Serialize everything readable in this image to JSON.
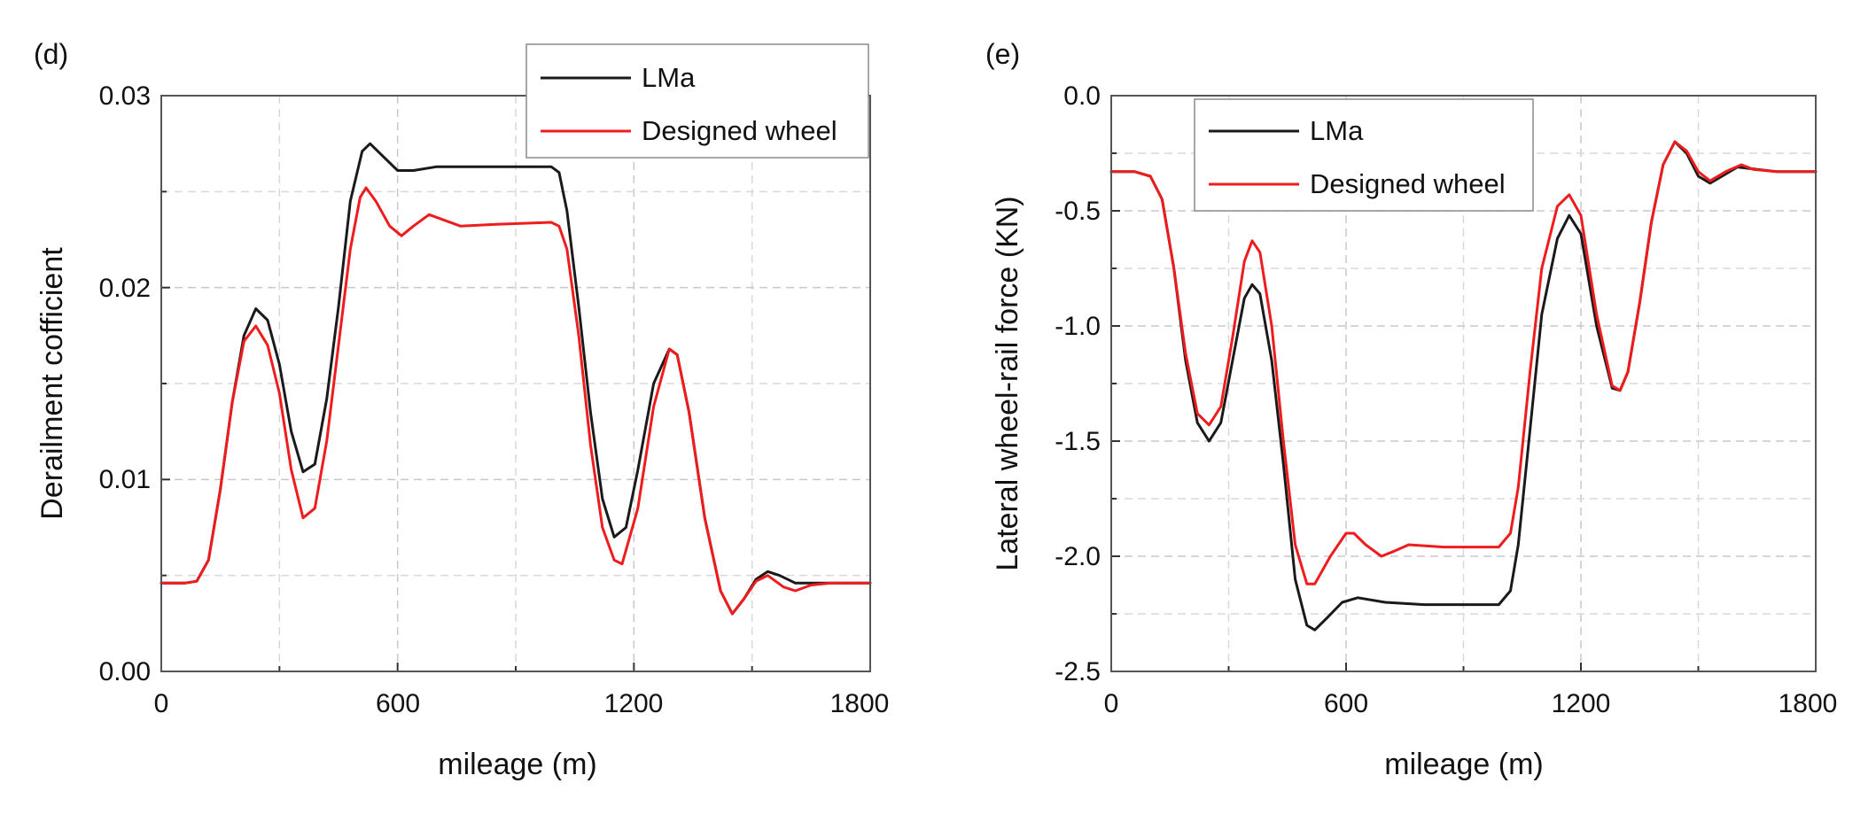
{
  "chart_data": [
    {
      "type": "line",
      "panel_label": "(d)",
      "title": "",
      "xlabel": "mileage (m)",
      "ylabel": "Derailment cofficient",
      "xlim": [
        0,
        1800
      ],
      "ylim": [
        0,
        0.03
      ],
      "x_ticks": [
        0,
        600,
        1200,
        1800
      ],
      "x_tick_labels": [
        "0",
        "600",
        "1200",
        "1800"
      ],
      "y_ticks": [
        0,
        0.01,
        0.02,
        0.03
      ],
      "y_tick_labels": [
        "0.00",
        "0.01",
        "0.02",
        "0.03"
      ],
      "grid": true,
      "legend_position": "top-right",
      "series": [
        {
          "name": "LMa",
          "color": "#1a1a1a",
          "points": [
            [
              0,
              0.0046
            ],
            [
              60,
              0.0046
            ],
            [
              90,
              0.0047
            ],
            [
              120,
              0.0058
            ],
            [
              150,
              0.0095
            ],
            [
              180,
              0.014
            ],
            [
              210,
              0.0175
            ],
            [
              240,
              0.0189
            ],
            [
              270,
              0.0183
            ],
            [
              300,
              0.016
            ],
            [
              330,
              0.0125
            ],
            [
              360,
              0.0104
            ],
            [
              390,
              0.0108
            ],
            [
              420,
              0.0142
            ],
            [
              450,
              0.019
            ],
            [
              480,
              0.0245
            ],
            [
              510,
              0.0271
            ],
            [
              530,
              0.0275
            ],
            [
              560,
              0.0269
            ],
            [
              600,
              0.0261
            ],
            [
              640,
              0.0261
            ],
            [
              700,
              0.0263
            ],
            [
              800,
              0.0263
            ],
            [
              900,
              0.0263
            ],
            [
              990,
              0.0263
            ],
            [
              1010,
              0.026
            ],
            [
              1030,
              0.024
            ],
            [
              1060,
              0.019
            ],
            [
              1090,
              0.0135
            ],
            [
              1120,
              0.009
            ],
            [
              1150,
              0.007
            ],
            [
              1180,
              0.0075
            ],
            [
              1210,
              0.0105
            ],
            [
              1250,
              0.015
            ],
            [
              1290,
              0.0168
            ],
            [
              1310,
              0.0165
            ],
            [
              1340,
              0.0135
            ],
            [
              1380,
              0.008
            ],
            [
              1420,
              0.0042
            ],
            [
              1450,
              0.003
            ],
            [
              1480,
              0.0038
            ],
            [
              1510,
              0.0048
            ],
            [
              1540,
              0.0052
            ],
            [
              1570,
              0.005
            ],
            [
              1610,
              0.0046
            ],
            [
              1700,
              0.0046
            ],
            [
              1800,
              0.0046
            ]
          ]
        },
        {
          "name": "Designed wheel",
          "color": "#ee1c1c",
          "points": [
            [
              0,
              0.0046
            ],
            [
              60,
              0.0046
            ],
            [
              90,
              0.0047
            ],
            [
              120,
              0.0058
            ],
            [
              150,
              0.0095
            ],
            [
              180,
              0.014
            ],
            [
              210,
              0.0172
            ],
            [
              240,
              0.018
            ],
            [
              270,
              0.017
            ],
            [
              300,
              0.0145
            ],
            [
              330,
              0.0105
            ],
            [
              360,
              0.008
            ],
            [
              390,
              0.0085
            ],
            [
              420,
              0.012
            ],
            [
              450,
              0.017
            ],
            [
              480,
              0.022
            ],
            [
              505,
              0.0247
            ],
            [
              520,
              0.0252
            ],
            [
              545,
              0.0245
            ],
            [
              580,
              0.0232
            ],
            [
              610,
              0.0227
            ],
            [
              640,
              0.0232
            ],
            [
              680,
              0.0238
            ],
            [
              720,
              0.0235
            ],
            [
              760,
              0.0232
            ],
            [
              850,
              0.0233
            ],
            [
              990,
              0.0234
            ],
            [
              1010,
              0.0232
            ],
            [
              1030,
              0.022
            ],
            [
              1060,
              0.0175
            ],
            [
              1090,
              0.0118
            ],
            [
              1120,
              0.0075
            ],
            [
              1150,
              0.0058
            ],
            [
              1170,
              0.0056
            ],
            [
              1210,
              0.0085
            ],
            [
              1250,
              0.0138
            ],
            [
              1290,
              0.0168
            ],
            [
              1310,
              0.0165
            ],
            [
              1340,
              0.0135
            ],
            [
              1380,
              0.008
            ],
            [
              1420,
              0.0042
            ],
            [
              1450,
              0.003
            ],
            [
              1480,
              0.0038
            ],
            [
              1510,
              0.0047
            ],
            [
              1540,
              0.005
            ],
            [
              1580,
              0.0044
            ],
            [
              1610,
              0.0042
            ],
            [
              1650,
              0.0045
            ],
            [
              1700,
              0.0046
            ],
            [
              1800,
              0.0046
            ]
          ]
        }
      ]
    },
    {
      "type": "line",
      "panel_label": "(e)",
      "title": "",
      "xlabel": "mileage (m)",
      "ylabel": "Lateral wheel-rail force (KN)",
      "xlim": [
        0,
        1800
      ],
      "ylim": [
        -2.5,
        0
      ],
      "x_ticks": [
        0,
        600,
        1200,
        1800
      ],
      "x_tick_labels": [
        "0",
        "600",
        "1200",
        "1800"
      ],
      "y_ticks": [
        -2.5,
        -2.0,
        -1.5,
        -1.0,
        -0.5,
        0.0
      ],
      "y_tick_labels": [
        "-2.5",
        "-2.0",
        "-1.5",
        "-1.0",
        "-0.5",
        "0.0"
      ],
      "grid": true,
      "legend_position": "top-left",
      "series": [
        {
          "name": "LMa",
          "color": "#1a1a1a",
          "points": [
            [
              0,
              -0.33
            ],
            [
              60,
              -0.33
            ],
            [
              100,
              -0.35
            ],
            [
              130,
              -0.45
            ],
            [
              160,
              -0.75
            ],
            [
              190,
              -1.15
            ],
            [
              220,
              -1.42
            ],
            [
              250,
              -1.5
            ],
            [
              280,
              -1.42
            ],
            [
              310,
              -1.15
            ],
            [
              340,
              -0.88
            ],
            [
              360,
              -0.82
            ],
            [
              380,
              -0.86
            ],
            [
              410,
              -1.15
            ],
            [
              440,
              -1.6
            ],
            [
              470,
              -2.1
            ],
            [
              500,
              -2.3
            ],
            [
              520,
              -2.32
            ],
            [
              550,
              -2.27
            ],
            [
              590,
              -2.2
            ],
            [
              630,
              -2.18
            ],
            [
              700,
              -2.2
            ],
            [
              800,
              -2.21
            ],
            [
              900,
              -2.21
            ],
            [
              990,
              -2.21
            ],
            [
              1020,
              -2.15
            ],
            [
              1040,
              -1.95
            ],
            [
              1070,
              -1.45
            ],
            [
              1100,
              -0.95
            ],
            [
              1140,
              -0.62
            ],
            [
              1170,
              -0.52
            ],
            [
              1200,
              -0.6
            ],
            [
              1240,
              -1.0
            ],
            [
              1280,
              -1.27
            ],
            [
              1300,
              -1.28
            ],
            [
              1320,
              -1.2
            ],
            [
              1350,
              -0.9
            ],
            [
              1380,
              -0.55
            ],
            [
              1410,
              -0.3
            ],
            [
              1440,
              -0.2
            ],
            [
              1470,
              -0.25
            ],
            [
              1500,
              -0.35
            ],
            [
              1530,
              -0.38
            ],
            [
              1570,
              -0.34
            ],
            [
              1600,
              -0.31
            ],
            [
              1650,
              -0.32
            ],
            [
              1700,
              -0.33
            ],
            [
              1800,
              -0.33
            ]
          ]
        },
        {
          "name": "Designed wheel",
          "color": "#ee1c1c",
          "points": [
            [
              0,
              -0.33
            ],
            [
              60,
              -0.33
            ],
            [
              100,
              -0.35
            ],
            [
              130,
              -0.45
            ],
            [
              160,
              -0.75
            ],
            [
              190,
              -1.12
            ],
            [
              220,
              -1.38
            ],
            [
              250,
              -1.43
            ],
            [
              280,
              -1.35
            ],
            [
              310,
              -1.05
            ],
            [
              340,
              -0.72
            ],
            [
              360,
              -0.63
            ],
            [
              380,
              -0.68
            ],
            [
              410,
              -1.0
            ],
            [
              440,
              -1.5
            ],
            [
              470,
              -1.95
            ],
            [
              500,
              -2.12
            ],
            [
              520,
              -2.12
            ],
            [
              560,
              -2.0
            ],
            [
              600,
              -1.9
            ],
            [
              620,
              -1.9
            ],
            [
              650,
              -1.95
            ],
            [
              690,
              -2.0
            ],
            [
              720,
              -1.98
            ],
            [
              760,
              -1.95
            ],
            [
              850,
              -1.96
            ],
            [
              990,
              -1.96
            ],
            [
              1020,
              -1.9
            ],
            [
              1040,
              -1.7
            ],
            [
              1070,
              -1.2
            ],
            [
              1100,
              -0.75
            ],
            [
              1140,
              -0.48
            ],
            [
              1170,
              -0.43
            ],
            [
              1200,
              -0.52
            ],
            [
              1240,
              -0.95
            ],
            [
              1280,
              -1.26
            ],
            [
              1300,
              -1.28
            ],
            [
              1320,
              -1.2
            ],
            [
              1350,
              -0.9
            ],
            [
              1380,
              -0.55
            ],
            [
              1410,
              -0.3
            ],
            [
              1440,
              -0.2
            ],
            [
              1470,
              -0.24
            ],
            [
              1500,
              -0.33
            ],
            [
              1530,
              -0.37
            ],
            [
              1570,
              -0.33
            ],
            [
              1610,
              -0.3
            ],
            [
              1640,
              -0.32
            ],
            [
              1700,
              -0.33
            ],
            [
              1800,
              -0.33
            ]
          ]
        }
      ]
    }
  ]
}
